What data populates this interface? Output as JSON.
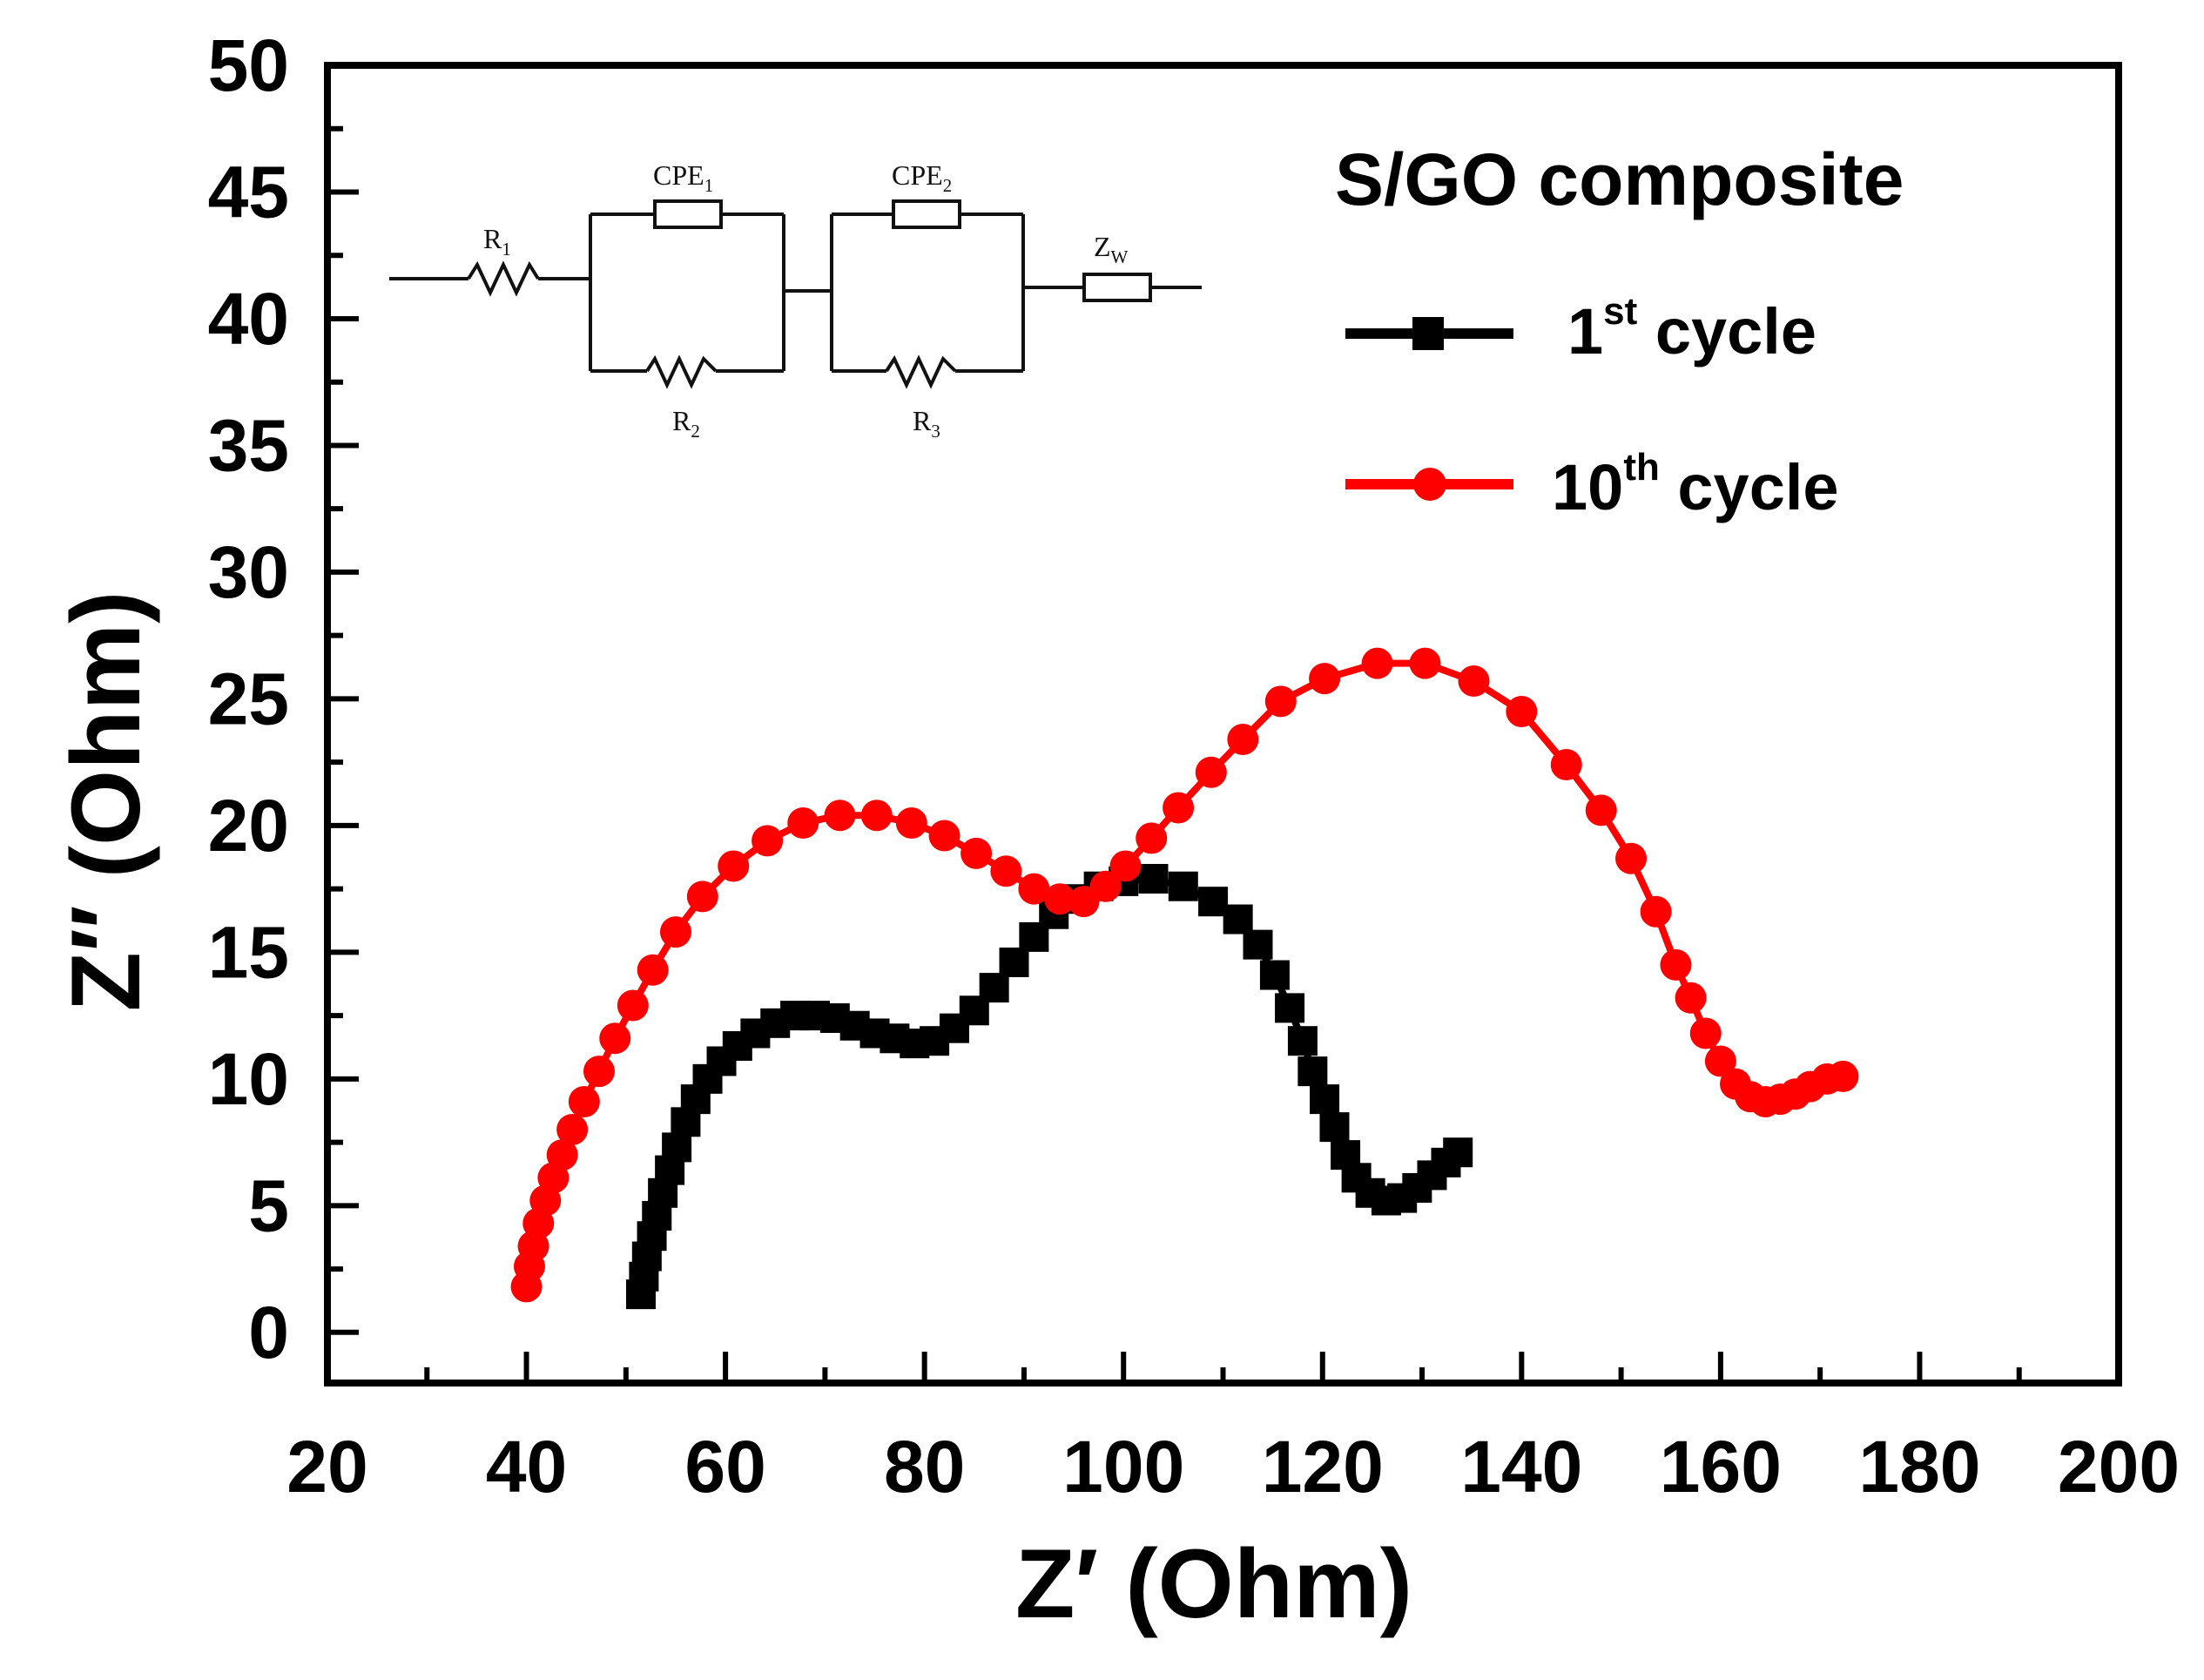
{
  "chart_data": {
    "type": "scatter",
    "title": "",
    "xlabel": "Z′ (Ohm)",
    "ylabel": "Z″ (Ohm)",
    "xlim": [
      20,
      200
    ],
    "ylim": [
      -2,
      50
    ],
    "xticks": [
      20,
      40,
      60,
      80,
      100,
      120,
      140,
      160,
      180,
      200
    ],
    "yticks": [
      0,
      5,
      10,
      15,
      20,
      25,
      30,
      35,
      40,
      45,
      50
    ],
    "legend": {
      "title": "S/GO composite",
      "placement": "top-right"
    },
    "series": [
      {
        "name": "1st cycle",
        "label_main": "1",
        "label_sup": "st",
        "label_tail": " cycle",
        "color": "#000000",
        "marker": "square",
        "points": [
          [
            51.5,
            1.5
          ],
          [
            51.8,
            2.2
          ],
          [
            52.1,
            3.0
          ],
          [
            52.6,
            3.8
          ],
          [
            53.1,
            4.6
          ],
          [
            53.7,
            5.5
          ],
          [
            54.4,
            6.4
          ],
          [
            55.1,
            7.3
          ],
          [
            56.0,
            8.3
          ],
          [
            57.0,
            9.2
          ],
          [
            58.2,
            10.0
          ],
          [
            59.6,
            10.7
          ],
          [
            61.2,
            11.3
          ],
          [
            63.0,
            11.8
          ],
          [
            65.0,
            12.2
          ],
          [
            67.0,
            12.5
          ],
          [
            69.0,
            12.5
          ],
          [
            71.0,
            12.4
          ],
          [
            73.0,
            12.1
          ],
          [
            75.0,
            11.8
          ],
          [
            77.0,
            11.6
          ],
          [
            79.0,
            11.4
          ],
          [
            81.0,
            11.5
          ],
          [
            83.0,
            12.0
          ],
          [
            85.0,
            12.7
          ],
          [
            87.0,
            13.6
          ],
          [
            89.0,
            14.6
          ],
          [
            91.0,
            15.6
          ],
          [
            93.0,
            16.5
          ],
          [
            95.0,
            17.1
          ],
          [
            97.5,
            17.6
          ],
          [
            100.0,
            17.8
          ],
          [
            103.0,
            17.9
          ],
          [
            106.0,
            17.6
          ],
          [
            109.0,
            17.0
          ],
          [
            111.5,
            16.3
          ],
          [
            113.5,
            15.3
          ],
          [
            115.2,
            14.1
          ],
          [
            116.7,
            12.8
          ],
          [
            118.0,
            11.5
          ],
          [
            119.0,
            10.3
          ],
          [
            120.2,
            9.2
          ],
          [
            121.2,
            8.1
          ],
          [
            122.3,
            7.0
          ],
          [
            123.4,
            6.1
          ],
          [
            124.8,
            5.5
          ],
          [
            126.4,
            5.2
          ],
          [
            128.0,
            5.3
          ],
          [
            129.5,
            5.7
          ],
          [
            131.0,
            6.2
          ],
          [
            132.4,
            6.7
          ],
          [
            133.6,
            7.1
          ]
        ]
      },
      {
        "name": "10th cycle",
        "label_main": "10",
        "label_sup": "th",
        "label_tail": " cycle",
        "color": "#ff0000",
        "marker": "circle",
        "points": [
          [
            40.0,
            1.8
          ],
          [
            40.3,
            2.6
          ],
          [
            40.7,
            3.4
          ],
          [
            41.2,
            4.3
          ],
          [
            41.9,
            5.2
          ],
          [
            42.7,
            6.1
          ],
          [
            43.6,
            7.0
          ],
          [
            44.6,
            8.0
          ],
          [
            45.8,
            9.1
          ],
          [
            47.3,
            10.3
          ],
          [
            48.9,
            11.6
          ],
          [
            50.7,
            12.9
          ],
          [
            52.7,
            14.3
          ],
          [
            55.0,
            15.8
          ],
          [
            57.7,
            17.2
          ],
          [
            60.8,
            18.4
          ],
          [
            64.2,
            19.4
          ],
          [
            67.8,
            20.1
          ],
          [
            71.5,
            20.4
          ],
          [
            75.2,
            20.4
          ],
          [
            78.7,
            20.1
          ],
          [
            82.0,
            19.6
          ],
          [
            85.2,
            18.9
          ],
          [
            88.2,
            18.2
          ],
          [
            91.0,
            17.5
          ],
          [
            93.6,
            17.1
          ],
          [
            96.0,
            17.0
          ],
          [
            98.2,
            17.6
          ],
          [
            100.2,
            18.4
          ],
          [
            102.8,
            19.5
          ],
          [
            105.5,
            20.7
          ],
          [
            108.8,
            22.1
          ],
          [
            112.0,
            23.4
          ],
          [
            115.8,
            24.9
          ],
          [
            120.2,
            25.8
          ],
          [
            125.5,
            26.4
          ],
          [
            130.3,
            26.4
          ],
          [
            135.2,
            25.7
          ],
          [
            140.0,
            24.5
          ],
          [
            144.5,
            22.4
          ],
          [
            148.0,
            20.6
          ],
          [
            151.0,
            18.7
          ],
          [
            153.5,
            16.6
          ],
          [
            155.5,
            14.5
          ],
          [
            157.0,
            13.2
          ],
          [
            158.5,
            11.8
          ],
          [
            160.0,
            10.7
          ],
          [
            161.5,
            9.8
          ],
          [
            163.0,
            9.3
          ],
          [
            164.5,
            9.1
          ],
          [
            166.0,
            9.2
          ],
          [
            167.5,
            9.4
          ],
          [
            169.0,
            9.7
          ],
          [
            170.7,
            10.0
          ],
          [
            172.3,
            10.1
          ]
        ]
      }
    ],
    "inset_circuit": {
      "labels": {
        "r1": "R",
        "r1_sub": "1",
        "cpe1": "CPE",
        "cpe1_sub": "1",
        "r2": "R",
        "r2_sub": "2",
        "cpe2": "CPE",
        "cpe2_sub": "2",
        "r3": "R",
        "r3_sub": "3",
        "zw": "Z",
        "zw_sub": "W"
      }
    }
  }
}
